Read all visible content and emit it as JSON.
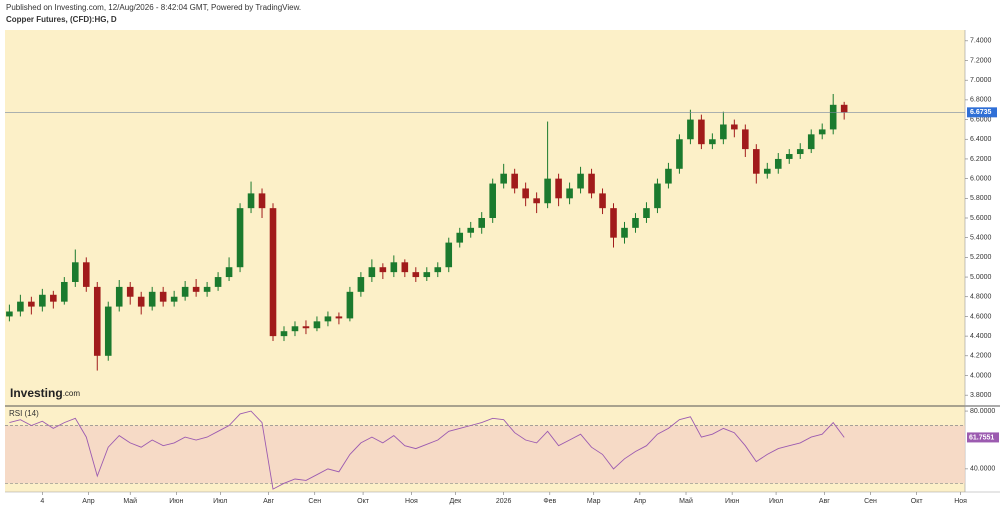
{
  "header": {
    "published": "Published on Investing.com, 12/Aug/2026 - 8:42:04 GMT, Powered by TradingView.",
    "symbol": "Copper Futures, (CFD):HG, D"
  },
  "logo": {
    "brand": "Investing",
    "suffix": ".com"
  },
  "chart_data": [
    {
      "type": "candlestick",
      "x": [
        2,
        7,
        12,
        17,
        22,
        27,
        32,
        37,
        42,
        47,
        52,
        57,
        62,
        67,
        72,
        77,
        82,
        87,
        92,
        97,
        102,
        107,
        112,
        117,
        122,
        127,
        132,
        137,
        142,
        147,
        152,
        157,
        162,
        167,
        172,
        177,
        182,
        187,
        192,
        197,
        202,
        207,
        212,
        217,
        222,
        227,
        232,
        237,
        242,
        247,
        252,
        257,
        262,
        267,
        272,
        277,
        282,
        287,
        292,
        297,
        302,
        307,
        312,
        317,
        322,
        327,
        332,
        337,
        342,
        347,
        352,
        357,
        362,
        367,
        372,
        377,
        382
      ],
      "ohlc": [
        [
          4.6,
          4.72,
          4.55,
          4.65
        ],
        [
          4.65,
          4.82,
          4.6,
          4.75
        ],
        [
          4.75,
          4.8,
          4.62,
          4.7
        ],
        [
          4.7,
          4.88,
          4.65,
          4.82
        ],
        [
          4.82,
          4.86,
          4.68,
          4.75
        ],
        [
          4.75,
          5.0,
          4.72,
          4.95
        ],
        [
          4.95,
          5.28,
          4.9,
          5.15
        ],
        [
          5.15,
          5.2,
          4.85,
          4.9
        ],
        [
          4.9,
          4.95,
          4.05,
          4.2
        ],
        [
          4.2,
          4.75,
          4.15,
          4.7
        ],
        [
          4.7,
          4.97,
          4.65,
          4.9
        ],
        [
          4.9,
          4.95,
          4.72,
          4.8
        ],
        [
          4.8,
          4.85,
          4.62,
          4.7
        ],
        [
          4.7,
          4.9,
          4.66,
          4.85
        ],
        [
          4.85,
          4.9,
          4.7,
          4.75
        ],
        [
          4.75,
          4.86,
          4.7,
          4.8
        ],
        [
          4.8,
          4.96,
          4.76,
          4.9
        ],
        [
          4.9,
          4.98,
          4.8,
          4.85
        ],
        [
          4.85,
          4.95,
          4.8,
          4.9
        ],
        [
          4.9,
          5.05,
          4.86,
          5.0
        ],
        [
          5.0,
          5.2,
          4.96,
          5.1
        ],
        [
          5.1,
          5.75,
          5.05,
          5.7
        ],
        [
          5.7,
          5.97,
          5.65,
          5.85
        ],
        [
          5.85,
          5.9,
          5.6,
          5.7
        ],
        [
          5.7,
          5.75,
          4.35,
          4.4
        ],
        [
          4.4,
          4.5,
          4.35,
          4.45
        ],
        [
          4.45,
          4.55,
          4.4,
          4.5
        ],
        [
          4.5,
          4.56,
          4.42,
          4.48
        ],
        [
          4.48,
          4.6,
          4.45,
          4.55
        ],
        [
          4.55,
          4.65,
          4.5,
          4.6
        ],
        [
          4.6,
          4.64,
          4.52,
          4.58
        ],
        [
          4.58,
          4.9,
          4.55,
          4.85
        ],
        [
          4.85,
          5.05,
          4.8,
          5.0
        ],
        [
          5.0,
          5.18,
          4.95,
          5.1
        ],
        [
          5.1,
          5.14,
          4.98,
          5.05
        ],
        [
          5.05,
          5.22,
          5.0,
          5.15
        ],
        [
          5.15,
          5.18,
          5.0,
          5.05
        ],
        [
          5.05,
          5.1,
          4.95,
          5.0
        ],
        [
          5.0,
          5.1,
          4.96,
          5.05
        ],
        [
          5.05,
          5.15,
          5.0,
          5.1
        ],
        [
          5.1,
          5.4,
          5.05,
          5.35
        ],
        [
          5.35,
          5.5,
          5.3,
          5.45
        ],
        [
          5.45,
          5.56,
          5.4,
          5.5
        ],
        [
          5.5,
          5.66,
          5.44,
          5.6
        ],
        [
          5.6,
          6.0,
          5.55,
          5.95
        ],
        [
          5.95,
          6.15,
          5.9,
          6.05
        ],
        [
          6.05,
          6.1,
          5.85,
          5.9
        ],
        [
          5.9,
          5.96,
          5.72,
          5.8
        ],
        [
          5.8,
          5.86,
          5.65,
          5.75
        ],
        [
          5.75,
          6.58,
          5.7,
          6.0
        ],
        [
          6.0,
          6.05,
          5.72,
          5.8
        ],
        [
          5.8,
          5.96,
          5.74,
          5.9
        ],
        [
          5.9,
          6.12,
          5.85,
          6.05
        ],
        [
          6.05,
          6.1,
          5.8,
          5.85
        ],
        [
          5.85,
          5.9,
          5.64,
          5.7
        ],
        [
          5.7,
          5.75,
          5.3,
          5.4
        ],
        [
          5.4,
          5.56,
          5.34,
          5.5
        ],
        [
          5.5,
          5.65,
          5.45,
          5.6
        ],
        [
          5.6,
          5.76,
          5.55,
          5.7
        ],
        [
          5.7,
          6.0,
          5.65,
          5.95
        ],
        [
          5.95,
          6.16,
          5.9,
          6.1
        ],
        [
          6.1,
          6.45,
          6.05,
          6.4
        ],
        [
          6.4,
          6.7,
          6.35,
          6.6
        ],
        [
          6.6,
          6.65,
          6.3,
          6.35
        ],
        [
          6.35,
          6.46,
          6.3,
          6.4
        ],
        [
          6.4,
          6.68,
          6.35,
          6.55
        ],
        [
          6.55,
          6.6,
          6.42,
          6.5
        ],
        [
          6.5,
          6.55,
          6.22,
          6.3
        ],
        [
          6.3,
          6.35,
          5.95,
          6.05
        ],
        [
          6.05,
          6.16,
          6.0,
          6.1
        ],
        [
          6.1,
          6.26,
          6.05,
          6.2
        ],
        [
          6.2,
          6.3,
          6.15,
          6.25
        ],
        [
          6.25,
          6.36,
          6.2,
          6.3
        ],
        [
          6.3,
          6.5,
          6.26,
          6.45
        ],
        [
          6.45,
          6.56,
          6.4,
          6.5
        ],
        [
          6.5,
          6.86,
          6.45,
          6.75
        ],
        [
          6.75,
          6.78,
          6.6,
          6.67
        ]
      ],
      "up_color": "#1b7a2e",
      "down_color": "#a11b1b",
      "last_price": {
        "value": 6.6735,
        "label": "6.6735"
      },
      "xlim": [
        0,
        437
      ],
      "xticks": [
        {
          "value": 17,
          "label": "4"
        },
        {
          "value": 38,
          "label": "Апр"
        },
        {
          "value": 57,
          "label": "Май"
        },
        {
          "value": 78,
          "label": "Июн"
        },
        {
          "value": 98,
          "label": "Июл"
        },
        {
          "value": 120,
          "label": "Авг"
        },
        {
          "value": 141,
          "label": "Сен"
        },
        {
          "value": 163,
          "label": "Окт"
        },
        {
          "value": 185,
          "label": "Ноя"
        },
        {
          "value": 205,
          "label": "Дек"
        },
        {
          "value": 227,
          "label": "2026"
        },
        {
          "value": 248,
          "label": "Фев"
        },
        {
          "value": 268,
          "label": "Мар"
        },
        {
          "value": 289,
          "label": "Апр"
        },
        {
          "value": 310,
          "label": "Май"
        },
        {
          "value": 331,
          "label": "Июн"
        },
        {
          "value": 351,
          "label": "Июл"
        },
        {
          "value": 373,
          "label": "Авг"
        },
        {
          "value": 394,
          "label": "Сен"
        },
        {
          "value": 415,
          "label": "Окт"
        },
        {
          "value": 435,
          "label": "Ноя"
        }
      ],
      "ylim": [
        3.69,
        7.51
      ],
      "yticks": [
        {
          "value": 3.8,
          "label": "3.8000"
        },
        {
          "value": 4.0,
          "label": "4.0000"
        },
        {
          "value": 4.2,
          "label": "4.2000"
        },
        {
          "value": 4.4,
          "label": "4.4000"
        },
        {
          "value": 4.6,
          "label": "4.6000"
        },
        {
          "value": 4.8,
          "label": "4.8000"
        },
        {
          "value": 5.0,
          "label": "5.0000"
        },
        {
          "value": 5.2,
          "label": "5.2000"
        },
        {
          "value": 5.4,
          "label": "5.4000"
        },
        {
          "value": 5.6,
          "label": "5.6000"
        },
        {
          "value": 5.8,
          "label": "5.8000"
        },
        {
          "value": 6.0,
          "label": "6.0000"
        },
        {
          "value": 6.2,
          "label": "6.2000"
        },
        {
          "value": 6.4,
          "label": "6.4000"
        },
        {
          "value": 6.6,
          "label": "6.6000"
        },
        {
          "value": 6.8,
          "label": "6.8000"
        },
        {
          "value": 7.0,
          "label": "7.0000"
        },
        {
          "value": 7.2,
          "label": "7.2000"
        },
        {
          "value": 7.4,
          "label": "7.4000"
        }
      ]
    },
    {
      "type": "line",
      "title": "RSI (14)",
      "series": [
        {
          "name": "RSI (14)",
          "color": "#9c5bb0",
          "values": [
            72,
            74,
            70,
            73,
            68,
            72,
            75,
            62,
            35,
            55,
            63,
            58,
            55,
            60,
            56,
            58,
            62,
            60,
            62,
            66,
            70,
            78,
            80,
            72,
            26,
            30,
            33,
            32,
            36,
            40,
            38,
            50,
            58,
            62,
            58,
            63,
            56,
            54,
            57,
            60,
            66,
            68,
            70,
            72,
            75,
            74,
            65,
            60,
            58,
            66,
            56,
            60,
            64,
            55,
            50,
            40,
            47,
            52,
            56,
            64,
            68,
            74,
            76,
            62,
            64,
            68,
            65,
            56,
            45,
            50,
            54,
            56,
            58,
            62,
            64,
            72,
            61.7551
          ]
        }
      ],
      "last_value": {
        "value": 61.7551,
        "label": "61.7551"
      },
      "bands": [
        30,
        70
      ],
      "ylim": [
        24,
        83.5
      ],
      "yticks": [
        {
          "value": 80,
          "label": "80.0000"
        },
        {
          "value": 40,
          "label": "40.0000"
        }
      ]
    }
  ]
}
